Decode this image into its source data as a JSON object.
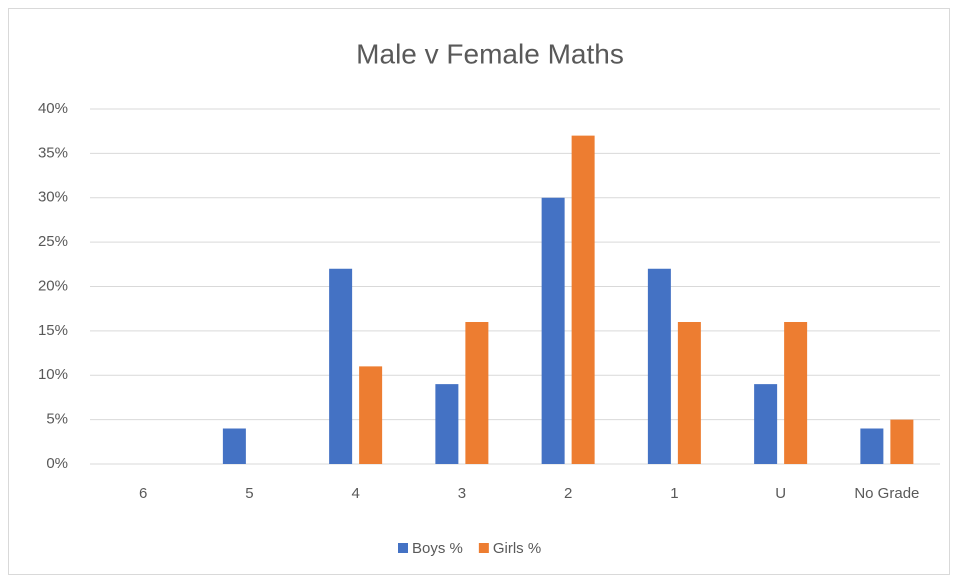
{
  "chart_data": {
    "type": "bar",
    "title": "Male v Female Maths",
    "categories": [
      "6",
      "5",
      "4",
      "3",
      "2",
      "1",
      "U",
      "No Grade"
    ],
    "series": [
      {
        "name": "Boys %",
        "color": "#4472c4",
        "values": [
          0,
          4,
          22,
          9,
          30,
          22,
          9,
          4
        ]
      },
      {
        "name": "Girls %",
        "color": "#ed7d31",
        "values": [
          0,
          0,
          11,
          16,
          37,
          16,
          16,
          5
        ]
      }
    ],
    "ylim": [
      0,
      40
    ],
    "yticks": [
      {
        "value": 0,
        "label": "0%"
      },
      {
        "value": 5,
        "label": "5%"
      },
      {
        "value": 10,
        "label": "10%"
      },
      {
        "value": 15,
        "label": "15%"
      },
      {
        "value": 20,
        "label": "20%"
      },
      {
        "value": 25,
        "label": "25%"
      },
      {
        "value": 30,
        "label": "30%"
      },
      {
        "value": 35,
        "label": "35%"
      },
      {
        "value": 40,
        "label": "40%"
      }
    ],
    "grid": true,
    "legend": "bottom"
  }
}
